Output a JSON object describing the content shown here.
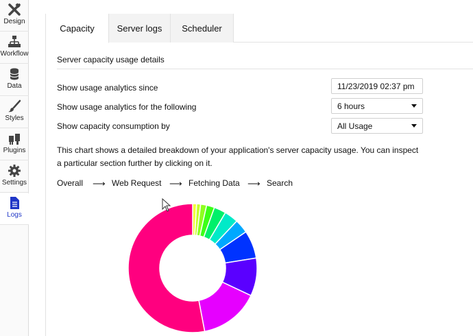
{
  "sidebar": {
    "items": [
      {
        "label": "Design",
        "icon": "design-tools-icon"
      },
      {
        "label": "Workflow",
        "icon": "workflow-icon"
      },
      {
        "label": "Data",
        "icon": "database-icon"
      },
      {
        "label": "Styles",
        "icon": "brush-icon"
      },
      {
        "label": "Plugins",
        "icon": "plug-icon"
      },
      {
        "label": "Settings",
        "icon": "gear-icon"
      },
      {
        "label": "Logs",
        "icon": "document-icon",
        "active": true
      }
    ],
    "active_color": "#1f36c7"
  },
  "tabs": [
    {
      "label": "Capacity",
      "active": true
    },
    {
      "label": "Server logs"
    },
    {
      "label": "Scheduler"
    }
  ],
  "section": {
    "title": "Server capacity usage details"
  },
  "form": {
    "since_label": "Show usage analytics since",
    "since_value": "11/23/2019 02:37 pm",
    "period_label": "Show usage analytics for the following",
    "period_value": "6 hours",
    "consumption_label": "Show capacity consumption by",
    "consumption_value": "All Usage"
  },
  "description": "This chart shows a detailed breakdown of your application's server capacity usage. You can inspect a particular section further by clicking on it.",
  "breadcrumb": {
    "items": [
      "Overall",
      "Web Request",
      "Fetching Data",
      "Search"
    ],
    "separator": "⟶"
  },
  "chart_data": {
    "type": "pie",
    "donut": true,
    "values": [
      1,
      1,
      1.5,
      2,
      3,
      3.5,
      3.5,
      7,
      9.5,
      15,
      53
    ],
    "colors": [
      "#f3ff3a",
      "#c6ff2a",
      "#8eff20",
      "#3cff18",
      "#00f06a",
      "#00eac8",
      "#00a8ff",
      "#0033ff",
      "#5a00ff",
      "#e600ff",
      "#ff007f"
    ]
  }
}
